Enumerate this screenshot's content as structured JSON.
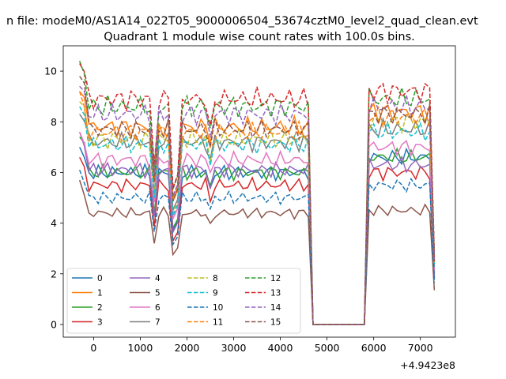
{
  "figure": {
    "suptitle": "n file: modeM0/AS1A14_022T05_9000006504_53674cztM0_level2_quad_clean.evt",
    "offset_label": "+4.9423e8"
  },
  "chart_data": {
    "type": "line",
    "title": "Quadrant 1 module wise count rates with 100.0s bins.",
    "xlabel": "",
    "ylabel": "",
    "xlim": [
      -650,
      7750
    ],
    "ylim": [
      -0.5,
      11.0
    ],
    "xticks": [
      0,
      1000,
      2000,
      3000,
      4000,
      5000,
      6000,
      7000
    ],
    "yticks": [
      0,
      2,
      4,
      6,
      8,
      10
    ],
    "x_offset": "+4.9423e8",
    "grid": false,
    "legend_position": "lower-left",
    "legend_columns": 4,
    "x": [
      -300,
      -200,
      -100,
      0,
      100,
      200,
      300,
      400,
      500,
      600,
      700,
      800,
      900,
      1000,
      1100,
      1200,
      1300,
      1400,
      1500,
      1600,
      1700,
      1800,
      1900,
      2000,
      2100,
      2200,
      2300,
      2400,
      2500,
      2600,
      2700,
      2800,
      2900,
      3000,
      3100,
      3200,
      3300,
      3400,
      3500,
      3600,
      3700,
      3800,
      3900,
      4000,
      4100,
      4200,
      4300,
      4400,
      4500,
      4600,
      4700,
      4800,
      4900,
      5000,
      5100,
      5200,
      5300,
      5400,
      5500,
      5600,
      5700,
      5800,
      5900,
      6000,
      6100,
      6200,
      6300,
      6400,
      6500,
      6600,
      6700,
      6800,
      6900,
      7000,
      7100,
      7200,
      7300
    ],
    "series": [
      {
        "name": "0",
        "color": "#1f77b4",
        "dashed": false,
        "level": 6.0,
        "first": 7.0,
        "high": 6.6
      },
      {
        "name": "1",
        "color": "#ff7f0e",
        "dashed": false,
        "level": 7.8,
        "first": 9.2,
        "high": 8.4
      },
      {
        "name": "2",
        "color": "#2ca02c",
        "dashed": false,
        "level": 6.0,
        "first": 7.4,
        "high": 6.6
      },
      {
        "name": "3",
        "color": "#d62728",
        "dashed": false,
        "level": 5.5,
        "first": 6.6,
        "high": 6.0
      },
      {
        "name": "4",
        "color": "#9467bd",
        "dashed": false,
        "level": 6.1,
        "first": 7.6,
        "high": 6.3
      },
      {
        "name": "5",
        "color": "#8c564b",
        "dashed": false,
        "level": 4.4,
        "first": 5.7,
        "high": 4.5
      },
      {
        "name": "6",
        "color": "#e377c2",
        "dashed": false,
        "level": 6.5,
        "first": 7.6,
        "high": 7.0
      },
      {
        "name": "7",
        "color": "#7f7f7f",
        "dashed": false,
        "level": 7.2,
        "first": 8.3,
        "high": 7.7
      },
      {
        "name": "8",
        "color": "#bcbd22",
        "dashed": true,
        "level": 7.3,
        "first": 8.8,
        "high": 8.0
      },
      {
        "name": "9",
        "color": "#17becf",
        "dashed": true,
        "level": 7.1,
        "first": 8.6,
        "high": 7.6
      },
      {
        "name": "10",
        "color": "#1f77b4",
        "dashed": true,
        "level": 5.0,
        "first": 6.1,
        "high": 5.5
      },
      {
        "name": "11",
        "color": "#ff7f0e",
        "dashed": true,
        "level": 7.6,
        "first": 9.2,
        "high": 8.2
      },
      {
        "name": "12",
        "color": "#2ca02c",
        "dashed": true,
        "level": 8.6,
        "first": 10.4,
        "high": 8.9
      },
      {
        "name": "13",
        "color": "#d62728",
        "dashed": true,
        "level": 8.9,
        "first": 10.3,
        "high": 9.2
      },
      {
        "name": "14",
        "color": "#9467bd",
        "dashed": true,
        "level": 8.3,
        "first": 9.4,
        "high": 8.6
      },
      {
        "name": "15",
        "color": "#8c564b",
        "dashed": true,
        "level": 7.7,
        "first": 9.8,
        "high": 8.3
      }
    ],
    "dip_points": [
      {
        "x": 1300,
        "factor": 0.72
      },
      {
        "x": 1700,
        "factor": 0.62
      },
      {
        "x": 1800,
        "factor": 0.68
      },
      {
        "x": 2500,
        "factor": 0.9
      }
    ],
    "gap": {
      "start": 4700,
      "end": 5800,
      "value": 0.0
    },
    "tail": {
      "x": 7300,
      "fraction": 0.3
    }
  }
}
